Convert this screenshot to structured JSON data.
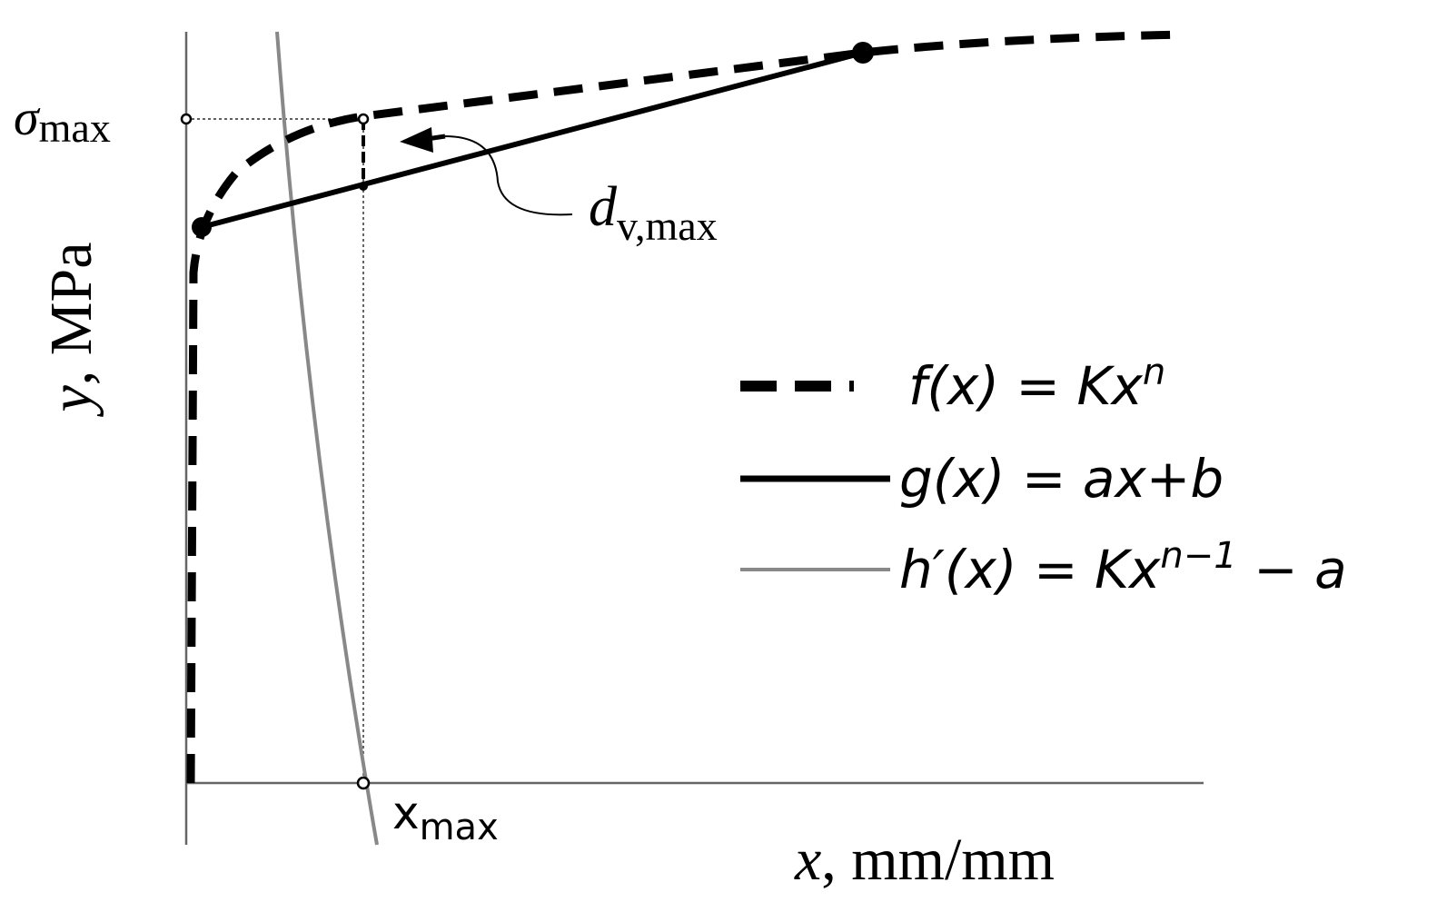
{
  "axes": {
    "y_label": {
      "var": "y",
      "unit": ", MPa"
    },
    "x_label": {
      "var": "x",
      "unit": ", mm/mm"
    }
  },
  "annotations": {
    "sigma_max": {
      "symbol": "σ",
      "sub": "max"
    },
    "d_v_max": {
      "symbol": "d",
      "sub": "v,max"
    },
    "x_max": {
      "symbol": "x",
      "sub": "max"
    }
  },
  "legend": [
    {
      "base": "f(x) = Kx",
      "sup": "n"
    },
    {
      "base": "g(x) = ax+b"
    },
    {
      "base": "h′(x) = Kx",
      "sup": "n−1",
      "tail": " − a"
    }
  ]
}
